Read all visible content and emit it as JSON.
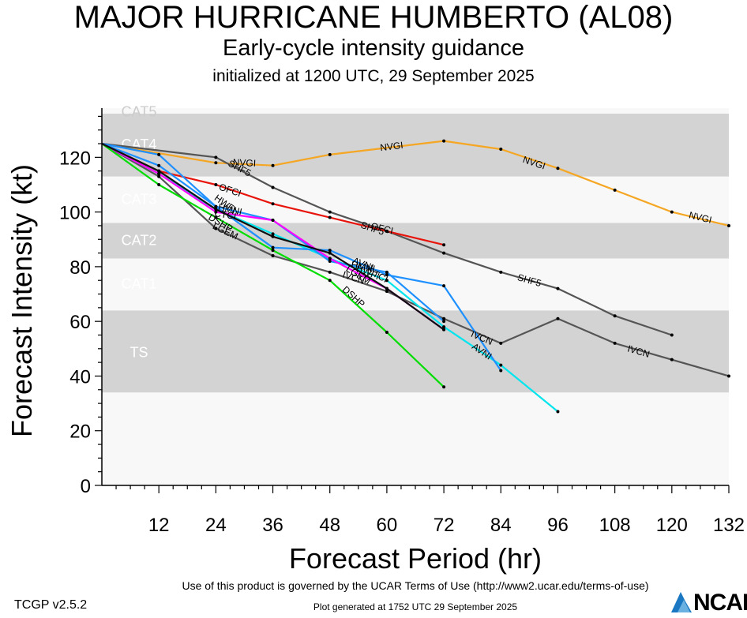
{
  "page": {
    "title": "MAJOR HURRICANE HUMBERTO (AL08)",
    "subtitle": "Early-cycle intensity guidance",
    "init_text": "initialized at 1200 UTC, 29 September 2025",
    "version": "TCGP v2.5.2",
    "terms": "Use of this product is governed by the UCAR Terms of Use (http://www2.ucar.edu/terms-of-use)",
    "generated": "Plot generated at 1752 UTC   29 September 2025",
    "logo": "NCAR"
  },
  "chart_data": {
    "type": "line",
    "xlabel": "Forecast Period (hr)",
    "ylabel": "Forecast Intensity (kt)",
    "xlim": [
      0,
      132
    ],
    "ylim": [
      0,
      138
    ],
    "xticks": [
      12,
      24,
      36,
      48,
      60,
      72,
      84,
      96,
      108,
      120,
      132
    ],
    "yticks": [
      0,
      20,
      40,
      60,
      80,
      100,
      120
    ],
    "categories": [
      {
        "label": "TS",
        "y0": 34,
        "y1": 64,
        "shade": "dark",
        "label_y": 49
      },
      {
        "label": "CAT1",
        "y0": 64,
        "y1": 83,
        "shade": "light",
        "label_y": 74
      },
      {
        "label": "CAT2",
        "y0": 83,
        "y1": 96,
        "shade": "dark",
        "label_y": 90
      },
      {
        "label": "CAT3",
        "y0": 96,
        "y1": 113,
        "shade": "light",
        "label_y": 105
      },
      {
        "label": "CAT4",
        "y0": 113,
        "y1": 136,
        "shade": "dark",
        "label_y": 125
      },
      {
        "label": "CAT5",
        "y0": 136,
        "y1": 138,
        "shade": "light",
        "label_y": 137
      }
    ],
    "band_colors": {
      "light": "#f8f8f8",
      "dark": "#d3d3d3",
      "label": "#ffffff",
      "top_label": "#cccccc"
    },
    "series": [
      {
        "name": "NVGI",
        "color": "#f5a623",
        "x": [
          0,
          24,
          36,
          48,
          72,
          84,
          96,
          108,
          120,
          132
        ],
        "y": [
          125,
          118,
          117,
          121,
          126,
          123,
          116,
          108,
          100,
          95
        ],
        "labels": [
          {
            "x": 30,
            "y": 118
          },
          {
            "x": 61,
            "y": 124
          },
          {
            "x": 91,
            "y": 118
          },
          {
            "x": 126,
            "y": 98
          }
        ]
      },
      {
        "name": "SHF5",
        "color": "#555555",
        "x": [
          0,
          24,
          36,
          48,
          60,
          72,
          84,
          96,
          108,
          120
        ],
        "y": [
          125,
          120,
          109,
          100,
          93,
          85,
          78,
          72,
          62,
          55
        ],
        "labels": [
          {
            "x": 29,
            "y": 116
          },
          {
            "x": 57,
            "y": 94
          },
          {
            "x": 90,
            "y": 75
          }
        ]
      },
      {
        "name": "OFCI",
        "color": "#e8140c",
        "x": [
          0,
          12,
          24,
          36,
          48,
          60,
          72
        ],
        "y": [
          125,
          115,
          110,
          103,
          98,
          93,
          88
        ],
        "labels": [
          {
            "x": 27,
            "y": 108
          },
          {
            "x": 59,
            "y": 94
          }
        ]
      },
      {
        "name": "IVCN",
        "color": "#555555",
        "x": [
          0,
          12,
          24,
          36,
          48,
          60,
          72,
          84,
          96,
          108,
          120,
          132
        ],
        "y": [
          125,
          113,
          94,
          84,
          78,
          71,
          61,
          52,
          61,
          52,
          46,
          40
        ],
        "labels": [
          {
            "x": 53,
            "y": 76
          },
          {
            "x": 80,
            "y": 54
          },
          {
            "x": 113,
            "y": 49
          }
        ]
      },
      {
        "name": "AVNI",
        "color": "#00e5ee",
        "x": [
          0,
          12,
          24,
          36,
          48,
          60,
          72,
          84,
          96
        ],
        "y": [
          125,
          114,
          101,
          92,
          83,
          75,
          58,
          44,
          27
        ],
        "labels": [
          {
            "x": 55,
            "y": 81
          },
          {
            "x": 80,
            "y": 49
          }
        ]
      },
      {
        "name": "HWFI",
        "color": "#1e90ff",
        "x": [
          0,
          12,
          24,
          36,
          48,
          60,
          72,
          84
        ],
        "y": [
          125,
          121,
          102,
          87,
          86,
          77,
          73,
          42
        ],
        "labels": [
          {
            "x": 26,
            "y": 103
          },
          {
            "x": 56,
            "y": 78
          }
        ]
      },
      {
        "name": "HMNI",
        "color": "#1e90ff",
        "x": [
          0,
          12,
          24,
          36,
          48,
          60,
          72
        ],
        "y": [
          125,
          117,
          102,
          97,
          82,
          78,
          60
        ],
        "labels": [
          {
            "x": 27,
            "y": 101
          },
          {
            "x": 55,
            "y": 80
          }
        ]
      },
      {
        "name": "CTCI",
        "color": "#ff00ff",
        "x": [
          0,
          12,
          24,
          36,
          48,
          60,
          72
        ],
        "y": [
          125,
          114,
          100,
          97,
          83,
          72,
          57
        ],
        "labels": [
          {
            "x": 26,
            "y": 99
          },
          {
            "x": 58,
            "y": 77
          }
        ]
      },
      {
        "name": "DSHP",
        "color": "#00dd00",
        "x": [
          0,
          12,
          24,
          36,
          48,
          60,
          72
        ],
        "y": [
          125,
          110,
          98,
          86,
          75,
          56,
          36
        ],
        "labels": [
          {
            "x": 25,
            "y": 96
          },
          {
            "x": 53,
            "y": 69
          }
        ]
      },
      {
        "name": "LGEM",
        "color": "#111111",
        "x": [
          0,
          12,
          24,
          36,
          48,
          60,
          72
        ],
        "y": [
          125,
          115,
          101,
          91,
          85,
          72,
          57
        ],
        "labels": [
          {
            "x": 26,
            "y": 93
          },
          {
            "x": 54,
            "y": 77
          }
        ]
      }
    ],
    "grid": false,
    "legend": "none"
  }
}
